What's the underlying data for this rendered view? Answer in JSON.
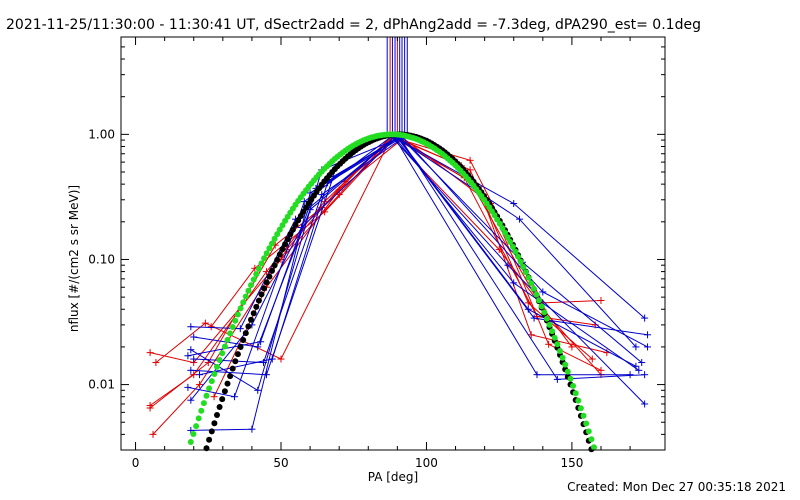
{
  "header": {
    "title": "2021-11-25/11:30:00 - 11:30:41 UT, dSectr2add = 2, dPhAng2add = -7.3deg, dPA290_est=  0.1deg"
  },
  "footer": {
    "created": "Created: Mon Dec 27 00:35:18 2021"
  },
  "chart_data": {
    "type": "line",
    "title": "2021-11-25/11:30:00 - 11:30:41 UT, dSectr2add = 2, dPhAng2add = -7.3deg, dPA290_est=  0.1deg",
    "xlabel": "PA [deg]",
    "ylabel": "nflux [#/(cm2 s sr MeV)]",
    "xlim": [
      -5,
      182
    ],
    "ylim": [
      0.003,
      6
    ],
    "yscale": "log",
    "xticks": [
      0,
      50,
      100,
      150
    ],
    "xtick_labels": [
      "0",
      "50",
      "100",
      "150"
    ],
    "yticks": [
      0.01,
      0.1,
      1.0
    ],
    "ytick_labels": [
      "0.01",
      "0.10",
      "1.00"
    ],
    "colors": {
      "red": "#e00000",
      "blue": "#0000cc",
      "black": "#000000",
      "green": "#22dd22"
    },
    "fit_curves": [
      {
        "name": "black fit",
        "color": "#000000",
        "x0": 90.5,
        "width": 27.5,
        "amp": 1.0
      },
      {
        "name": "green fit",
        "color": "#22dd22",
        "x0": 88.0,
        "width": 29.0,
        "amp": 1.0
      }
    ],
    "vertical_markers": [
      {
        "x": 86.5,
        "color": "#0000cc"
      },
      {
        "x": 87.5,
        "color": "#e00000"
      },
      {
        "x": 88.3,
        "color": "#0000cc"
      },
      {
        "x": 89.2,
        "color": "#0000cc"
      },
      {
        "x": 90.0,
        "color": "#e00000"
      },
      {
        "x": 90.8,
        "color": "#0000cc"
      },
      {
        "x": 91.6,
        "color": "#0000cc"
      },
      {
        "x": 92.5,
        "color": "#0000cc"
      },
      {
        "x": 93.4,
        "color": "#0000cc"
      }
    ],
    "series": [
      {
        "name": "red 1",
        "color": "#e00000",
        "x": [
          5,
          20,
          50,
          70,
          88,
          115,
          140,
          160
        ],
        "y": [
          0.018,
          0.015,
          0.1,
          0.33,
          0.95,
          0.62,
          0.045,
          0.047
        ]
      },
      {
        "name": "red 2",
        "color": "#e00000",
        "x": [
          5,
          20,
          45,
          65,
          88,
          113,
          138,
          158
        ],
        "y": [
          0.0068,
          0.012,
          0.08,
          0.29,
          0.96,
          0.45,
          0.035,
          0.03
        ]
      },
      {
        "name": "red 3",
        "color": "#e00000",
        "x": [
          6,
          22,
          52,
          72,
          90,
          118,
          136,
          162
        ],
        "y": [
          0.004,
          0.01,
          0.12,
          0.42,
          0.94,
          0.38,
          0.025,
          0.018
        ]
      },
      {
        "name": "red 4",
        "color": "#e00000",
        "x": [
          5,
          25,
          48,
          64,
          88,
          112,
          140,
          160
        ],
        "y": [
          0.0065,
          0.015,
          0.13,
          0.26,
          0.97,
          0.56,
          0.04,
          0.012
        ]
      },
      {
        "name": "red 5",
        "color": "#e00000",
        "x": [
          27,
          45,
          70,
          92,
          122,
          142,
          160
        ],
        "y": [
          0.008,
          0.06,
          0.36,
          0.93,
          0.28,
          0.021,
          0.013
        ]
      },
      {
        "name": "red 6",
        "color": "#e00000",
        "x": [
          26,
          41,
          65,
          89,
          115,
          135,
          157
        ],
        "y": [
          0.029,
          0.085,
          0.24,
          0.96,
          0.52,
          0.045,
          0.016
        ]
      },
      {
        "name": "red 7",
        "color": "#e00000",
        "x": [
          7,
          24,
          50,
          88,
          125,
          150
        ],
        "y": [
          0.015,
          0.031,
          0.016,
          0.95,
          0.12,
          0.02
        ]
      },
      {
        "name": "blue 1",
        "color": "#0000cc",
        "x": [
          19,
          42,
          64,
          90,
          130,
          175
        ],
        "y": [
          0.019,
          0.009,
          0.52,
          0.92,
          0.28,
          0.034
        ]
      },
      {
        "name": "blue 2",
        "color": "#0000cc",
        "x": [
          19,
          40,
          60,
          90,
          132,
          172
        ],
        "y": [
          0.0043,
          0.0044,
          0.34,
          0.93,
          0.21,
          0.02
        ]
      },
      {
        "name": "blue 3",
        "color": "#0000cc",
        "x": [
          18,
          34,
          58,
          88,
          128,
          175
        ],
        "y": [
          0.0095,
          0.008,
          0.29,
          0.96,
          0.09,
          0.007
        ]
      },
      {
        "name": "blue 4",
        "color": "#0000cc",
        "x": [
          19,
          45,
          68,
          91,
          133,
          174
        ],
        "y": [
          0.013,
          0.012,
          0.46,
          0.95,
          0.095,
          0.015
        ]
      },
      {
        "name": "blue 5",
        "color": "#0000cc",
        "x": [
          18,
          43,
          62,
          90,
          137,
          176
        ],
        "y": [
          0.017,
          0.022,
          0.37,
          0.94,
          0.034,
          0.025
        ]
      },
      {
        "name": "blue 6",
        "color": "#0000cc",
        "x": [
          19,
          36,
          55,
          89,
          130,
          173
        ],
        "y": [
          0.029,
          0.028,
          0.21,
          0.95,
          0.065,
          0.013
        ]
      },
      {
        "name": "blue 7",
        "color": "#0000cc",
        "x": [
          20,
          44,
          64,
          92,
          140,
          176
        ],
        "y": [
          0.016,
          0.015,
          0.33,
          0.94,
          0.055,
          0.02
        ]
      },
      {
        "name": "blue 8",
        "color": "#0000cc",
        "x": [
          19,
          40,
          57,
          90,
          135,
          172
        ],
        "y": [
          0.0075,
          0.03,
          0.18,
          0.96,
          0.04,
          0.014
        ]
      },
      {
        "name": "blue 9",
        "color": "#0000cc",
        "x": [
          22,
          47,
          66,
          91,
          145,
          175
        ],
        "y": [
          0.012,
          0.016,
          0.41,
          0.93,
          0.011,
          0.012
        ]
      },
      {
        "name": "blue 10",
        "color": "#0000cc",
        "x": [
          20,
          42,
          60,
          89,
          138,
          170
        ],
        "y": [
          0.024,
          0.02,
          0.25,
          0.95,
          0.012,
          0.012
        ]
      }
    ]
  }
}
